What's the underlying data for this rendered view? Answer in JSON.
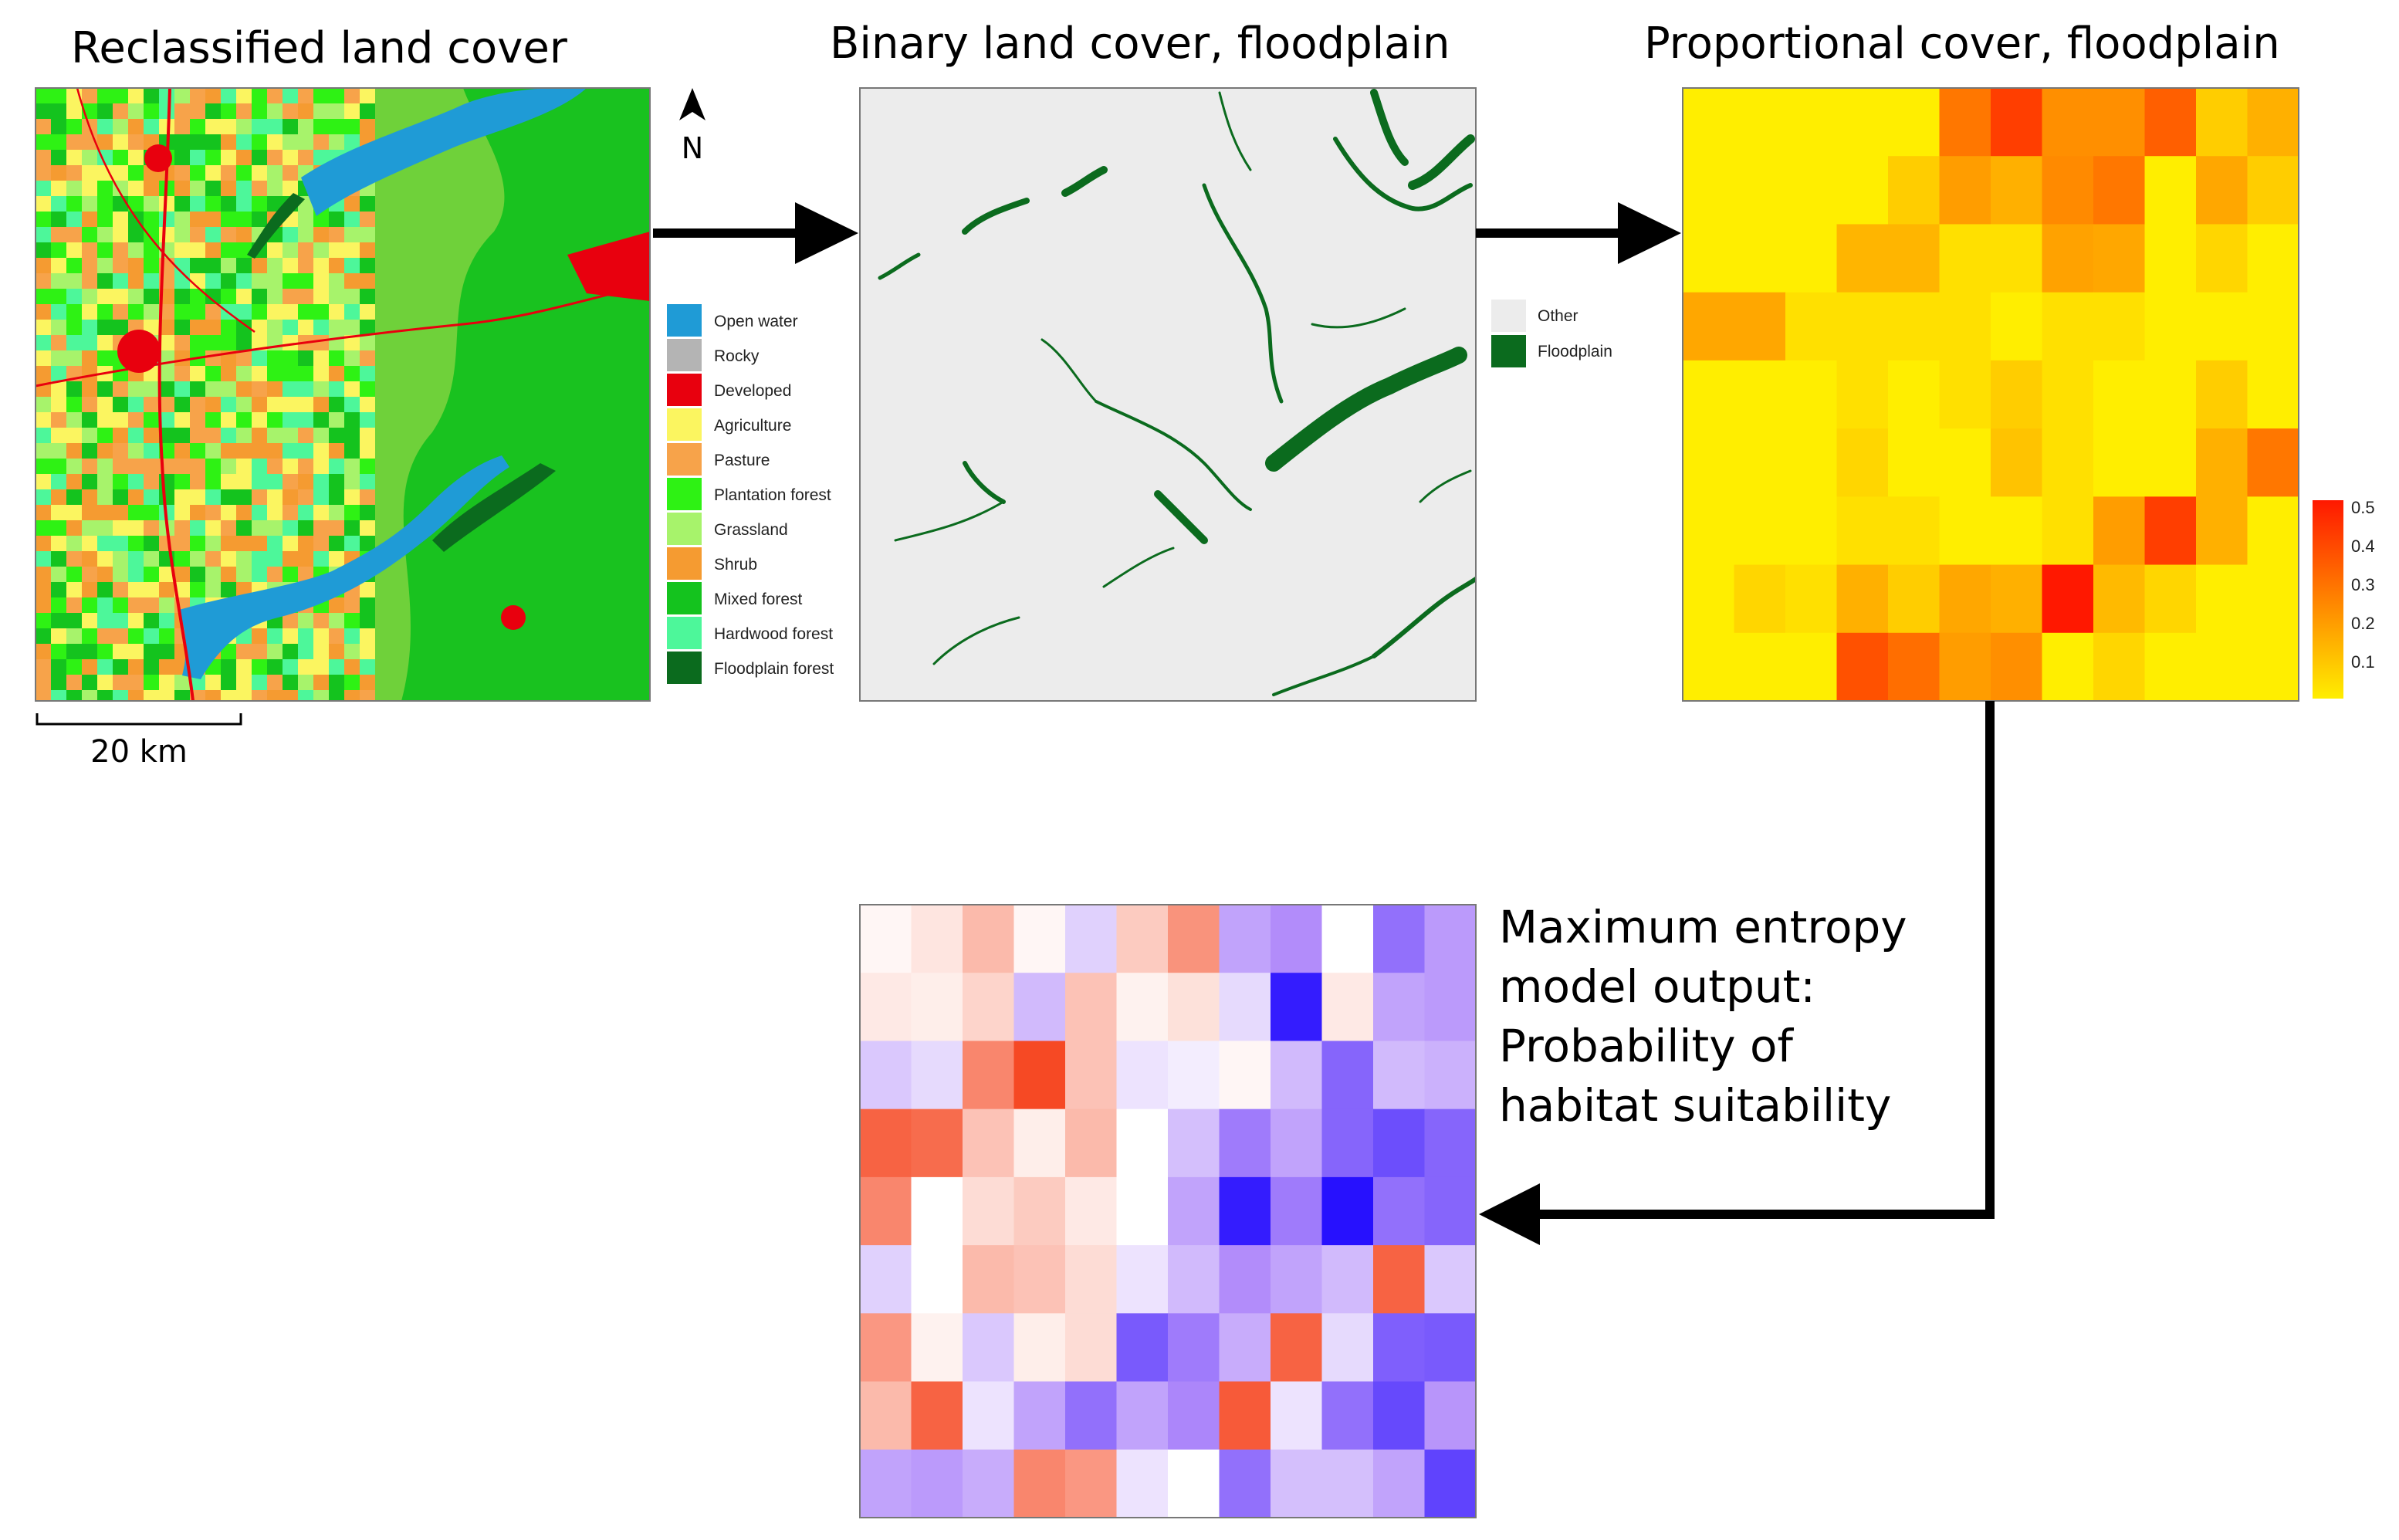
{
  "panels": {
    "land_cover": {
      "title": "Reclassified land cover",
      "north_label": "N",
      "scale_label": "20 km",
      "legend": [
        {
          "label": "Open water",
          "color": "#1f9bd6"
        },
        {
          "label": "Rocky",
          "color": "#b4b4b4"
        },
        {
          "label": "Developed",
          "color": "#e8000e"
        },
        {
          "label": "Agriculture",
          "color": "#fbf560"
        },
        {
          "label": "Pasture",
          "color": "#f7a34a"
        },
        {
          "label": "Plantation forest",
          "color": "#2ef214"
        },
        {
          "label": "Grassland",
          "color": "#a7f36b"
        },
        {
          "label": "Shrub",
          "color": "#f59b31"
        },
        {
          "label": "Mixed forest",
          "color": "#14c31e"
        },
        {
          "label": "Hardwood forest",
          "color": "#4df79a"
        },
        {
          "label": "Floodplain forest",
          "color": "#0b6b1e"
        }
      ]
    },
    "binary": {
      "title": "Binary land cover, floodplain",
      "legend": [
        {
          "label": "Other",
          "color": "#ececec"
        },
        {
          "label": "Floodplain",
          "color": "#0b6b1e"
        }
      ]
    },
    "proportional": {
      "title": "Proportional cover, floodplain",
      "colorbar": {
        "ticks": [
          "0.5",
          "0.4",
          "0.3",
          "0.2",
          "0.1"
        ],
        "colors": [
          "#ff1800",
          "#ffee00"
        ]
      },
      "grid": [
        [
          0.05,
          0.05,
          0.05,
          0.05,
          0.05,
          0.3,
          0.42,
          0.25,
          0.25,
          0.35,
          0.12,
          0.18
        ],
        [
          0.05,
          0.05,
          0.05,
          0.05,
          0.12,
          0.22,
          0.18,
          0.26,
          0.3,
          0.05,
          0.2,
          0.12
        ],
        [
          0.05,
          0.05,
          0.05,
          0.17,
          0.17,
          0.08,
          0.08,
          0.21,
          0.2,
          0.05,
          0.1,
          0.05
        ],
        [
          0.2,
          0.2,
          0.08,
          0.08,
          0.08,
          0.08,
          0.05,
          0.08,
          0.08,
          0.05,
          0.05,
          0.05
        ],
        [
          0.05,
          0.05,
          0.05,
          0.08,
          0.05,
          0.08,
          0.12,
          0.08,
          0.05,
          0.05,
          0.12,
          0.05
        ],
        [
          0.05,
          0.05,
          0.05,
          0.1,
          0.05,
          0.05,
          0.14,
          0.08,
          0.05,
          0.05,
          0.18,
          0.3
        ],
        [
          0.05,
          0.05,
          0.05,
          0.08,
          0.08,
          0.05,
          0.05,
          0.08,
          0.22,
          0.42,
          0.18,
          0.05
        ],
        [
          0.05,
          0.1,
          0.08,
          0.18,
          0.12,
          0.2,
          0.18,
          0.5,
          0.16,
          0.1,
          0.05,
          0.05
        ],
        [
          0.05,
          0.05,
          0.05,
          0.38,
          0.32,
          0.22,
          0.25,
          0.05,
          0.1,
          0.05,
          0.05,
          0.05
        ]
      ]
    },
    "maxent": {
      "text_lines": [
        "Maximum entropy",
        "model output:",
        "Probability of",
        "habitat suitability"
      ],
      "grid": [
        [
          0.52,
          0.56,
          0.66,
          0.52,
          0.4,
          0.62,
          0.75,
          0.3,
          0.25,
          0.5,
          0.2,
          0.28
        ],
        [
          0.55,
          0.54,
          0.6,
          0.35,
          0.64,
          0.53,
          0.57,
          0.42,
          0.05,
          0.55,
          0.3,
          0.28
        ],
        [
          0.38,
          0.42,
          0.78,
          0.92,
          0.64,
          0.44,
          0.46,
          0.52,
          0.35,
          0.18,
          0.35,
          0.33
        ],
        [
          0.86,
          0.84,
          0.64,
          0.54,
          0.66,
          0.5,
          0.36,
          0.22,
          0.3,
          0.18,
          0.14,
          0.18
        ],
        [
          0.78,
          0.5,
          0.58,
          0.62,
          0.55,
          0.5,
          0.3,
          0.05,
          0.22,
          0.03,
          0.2,
          0.18
        ],
        [
          0.4,
          0.5,
          0.66,
          0.64,
          0.58,
          0.44,
          0.35,
          0.25,
          0.3,
          0.35,
          0.86,
          0.38
        ],
        [
          0.74,
          0.53,
          0.38,
          0.54,
          0.58,
          0.16,
          0.22,
          0.32,
          0.86,
          0.42,
          0.17,
          0.16
        ],
        [
          0.66,
          0.86,
          0.44,
          0.3,
          0.2,
          0.3,
          0.24,
          0.88,
          0.44,
          0.2,
          0.13,
          0.27
        ],
        [
          0.3,
          0.28,
          0.32,
          0.78,
          0.74,
          0.44,
          0.5,
          0.2,
          0.36,
          0.36,
          0.3,
          0.12
        ]
      ]
    }
  }
}
